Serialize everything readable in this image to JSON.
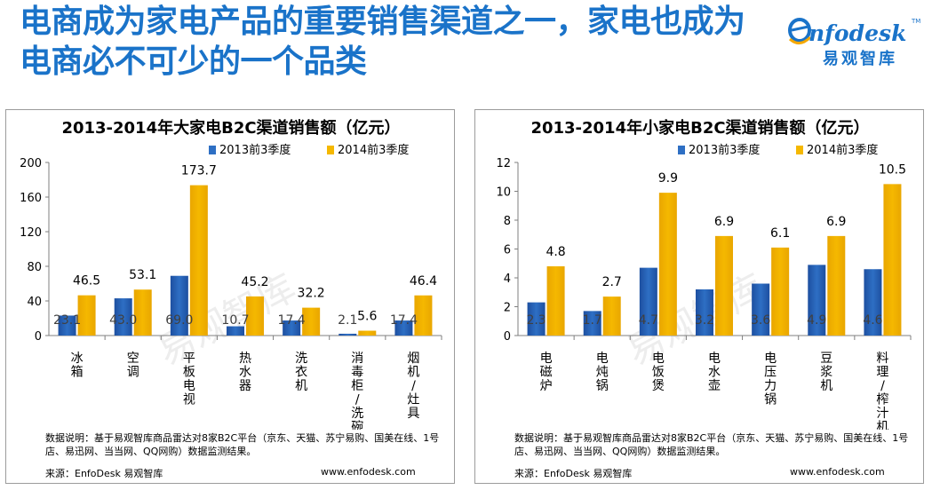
{
  "headline": {
    "line1": "电商成为家电产品的重要销售渠道之一，家电也成为",
    "line2": "电商必不可少的一个品类"
  },
  "logo": {
    "brand": "Enfodesk",
    "cn": "易观智库",
    "tm": "TM"
  },
  "watermark": "易观智库",
  "colors": {
    "headline": "#1a73c9",
    "series2013": "#2e6fc4",
    "series2014": "#f5b800"
  },
  "panels": [
    {
      "note": "数据说明：基于易观智库商品雷达对8家B2C平台（京东、天猫、苏宁易购、国美在线、1号店、易迅网、当当网、QQ网购）数据监测结果。",
      "source": "来源：EnfoDesk 易观智库",
      "url": "www.enfodesk.com"
    },
    {
      "note": "数据说明：基于易观智库商品雷达对8家B2C平台（京东、天猫、苏宁易购、国美在线、1号店、易迅网、当当网、QQ网购）数据监测结果。",
      "source": "来源：EnfoDesk 易观智库",
      "url": "www.enfodesk.com"
    }
  ],
  "chart_data": [
    {
      "type": "bar",
      "title": "2013-2014年大家电B2C渠道销售额（亿元）",
      "categories": [
        "冰箱",
        "空调",
        "平板电视",
        "热水器",
        "洗衣机",
        "消毒柜/洗碗机",
        "烟机/灶具"
      ],
      "series": [
        {
          "name": "2013前3季度",
          "values": [
            23.1,
            43.0,
            69.0,
            10.7,
            17.4,
            2.1,
            17.4
          ]
        },
        {
          "name": "2014前3季度",
          "values": [
            46.5,
            53.1,
            173.7,
            45.2,
            32.2,
            5.6,
            46.4
          ]
        }
      ],
      "value_labels": [
        [
          "23.1",
          "43.0",
          "69.0",
          "10.7",
          "17.4",
          "2.1",
          "17.4"
        ],
        [
          "46.5",
          "53.1",
          "173.7",
          "45.2",
          "32.2",
          "5.6",
          "46.4"
        ]
      ],
      "ylim": [
        0,
        200
      ],
      "yticks": [
        "0",
        "40",
        "80",
        "120",
        "160",
        "200"
      ],
      "legend": "top-right",
      "grid": false
    },
    {
      "type": "bar",
      "title": "2013-2014年小家电B2C渠道销售额（亿元）",
      "categories": [
        "电磁炉",
        "电炖锅",
        "电饭煲",
        "电水壶",
        "电压力锅",
        "豆浆机",
        "料理/榨汁机"
      ],
      "series": [
        {
          "name": "2013前3季度",
          "values": [
            2.3,
            1.7,
            4.7,
            3.2,
            3.6,
            4.9,
            4.6
          ]
        },
        {
          "name": "2014前3季度",
          "values": [
            4.8,
            2.7,
            9.9,
            6.9,
            6.1,
            6.9,
            10.5
          ]
        }
      ],
      "value_labels": [
        [
          "2.3",
          "1.7",
          "4.7",
          "3.2",
          "3.6",
          "4.9",
          "4.6"
        ],
        [
          "4.8",
          "2.7",
          "9.9",
          "6.9",
          "6.1",
          "6.9",
          "10.5"
        ]
      ],
      "ylim": [
        0,
        12
      ],
      "yticks": [
        "0",
        "2",
        "4",
        "6",
        "8",
        "10",
        "12"
      ],
      "legend": "top-right",
      "grid": false
    }
  ]
}
